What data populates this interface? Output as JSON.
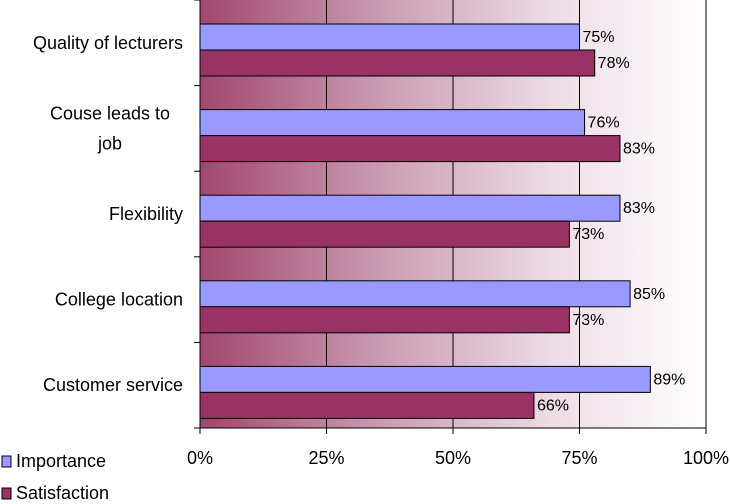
{
  "chart_data": {
    "type": "bar",
    "orientation": "horizontal",
    "title": "",
    "xlabel": "",
    "ylabel": "",
    "categories": [
      [
        "Quality of lecturers"
      ],
      [
        "Couse leads to",
        "job"
      ],
      [
        "Flexibility"
      ],
      [
        "College location"
      ],
      [
        "Customer service"
      ]
    ],
    "series": [
      {
        "name": "Importance",
        "values": [
          75,
          76,
          83,
          85,
          89
        ],
        "color": "#9999ff"
      },
      {
        "name": "Satisfaction",
        "values": [
          78,
          83,
          73,
          73,
          66
        ],
        "color": "#993366"
      }
    ],
    "data_labels": [
      [
        "75%",
        "76%",
        "83%",
        "85%",
        "89%"
      ],
      [
        "78%",
        "83%",
        "73%",
        "73%",
        "66%"
      ]
    ],
    "xlim": [
      0,
      100
    ],
    "x_ticks": [
      {
        "value": 0,
        "label": "0%"
      },
      {
        "value": 25,
        "label": "25%"
      },
      {
        "value": 50,
        "label": "50%"
      },
      {
        "value": 75,
        "label": "75%"
      },
      {
        "value": 100,
        "label": "100%"
      }
    ],
    "grid": true,
    "legend_position": "bottom-left",
    "plot_background": "gradient maroon to white"
  }
}
